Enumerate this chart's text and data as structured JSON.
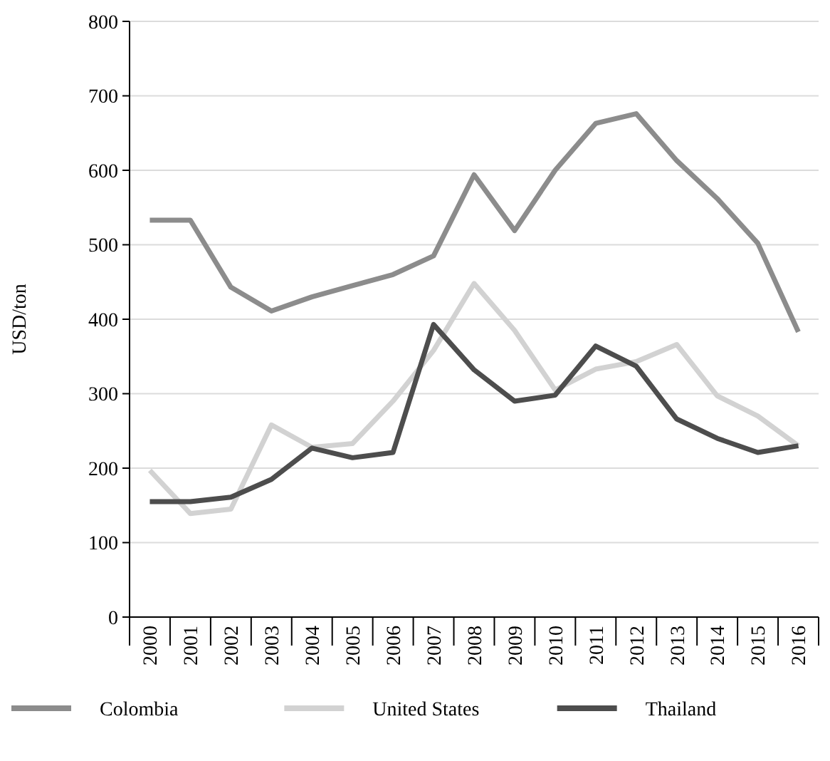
{
  "chart_data": {
    "type": "line",
    "ylabel": "USD/ton",
    "categories": [
      "2000",
      "2001",
      "2002",
      "2003",
      "2004",
      "2005",
      "2006",
      "2007",
      "2008",
      "2009",
      "2010",
      "2011",
      "2012",
      "2013",
      "2014",
      "2015",
      "2016"
    ],
    "series": [
      {
        "name": "Colombia",
        "color": "#8c8c8c",
        "values": [
          533,
          533,
          443,
          411,
          430,
          445,
          460,
          485,
          594,
          519,
          600,
          663,
          676,
          613,
          562,
          502,
          383
        ]
      },
      {
        "name": "United States",
        "color": "#d2d2d2",
        "values": [
          197,
          139,
          145,
          258,
          228,
          233,
          290,
          358,
          448,
          385,
          305,
          333,
          343,
          366,
          297,
          270,
          230
        ]
      },
      {
        "name": "Thailand",
        "color": "#4d4d4d",
        "values": [
          155,
          155,
          161,
          185,
          227,
          214,
          221,
          393,
          332,
          290,
          298,
          364,
          337,
          266,
          240,
          221,
          230
        ]
      }
    ],
    "ylim": [
      0,
      800
    ],
    "yticks": [
      0,
      100,
      200,
      300,
      400,
      500,
      600,
      700,
      800
    ],
    "grid": "y",
    "legend": "bottom",
    "marker": "none",
    "line_style": "solid"
  }
}
